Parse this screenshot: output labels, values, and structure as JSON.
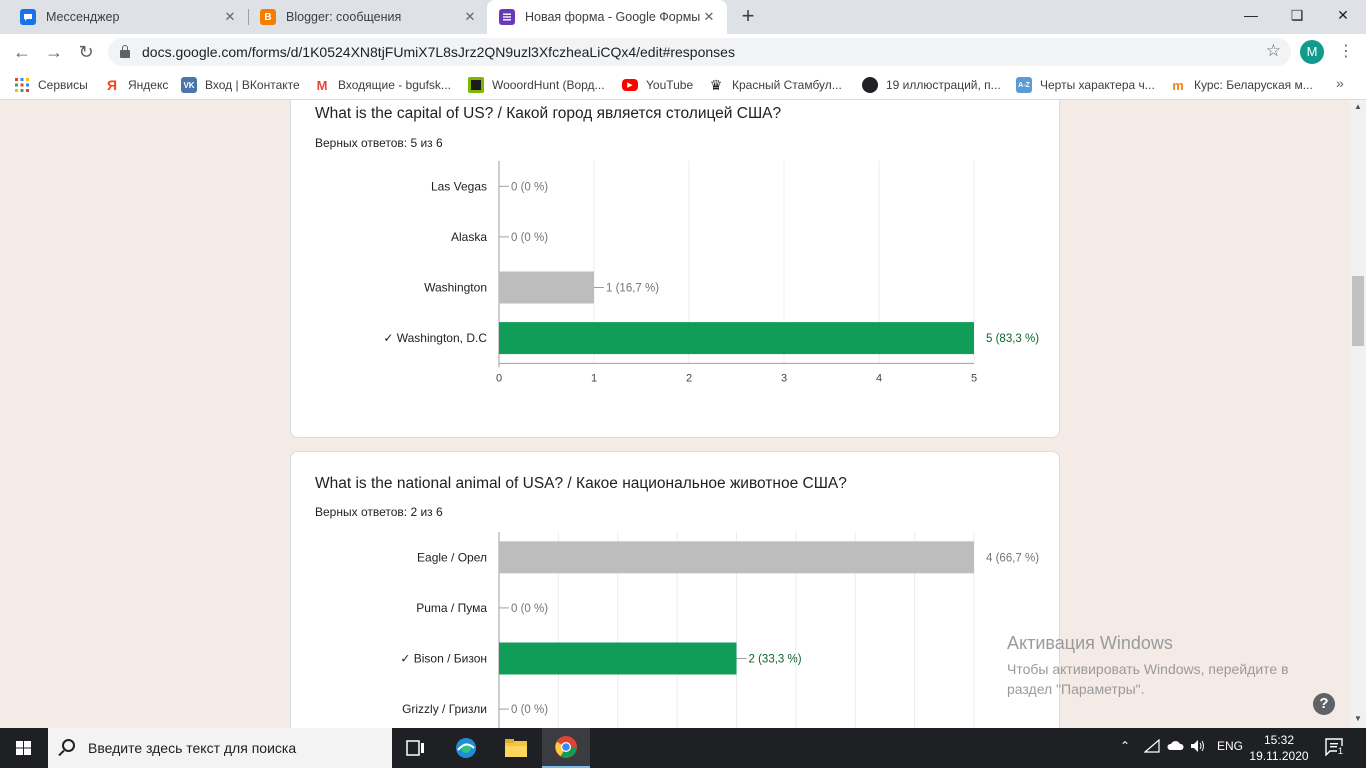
{
  "browser": {
    "tabs": [
      {
        "title": "Мессенджер",
        "icon": "messenger-icon",
        "active": false
      },
      {
        "title": "Blogger: сообщения",
        "icon": "blogger-icon",
        "active": false
      },
      {
        "title": "Новая форма - Google Формы",
        "icon": "google-forms-icon",
        "active": true
      }
    ],
    "new_tab_label": "+",
    "address": "docs.google.com/forms/d/1K0524XN8tjFUmiX7L8sJrz2QN9uzl3XfczheaLiCQx4/edit#responses",
    "profile_initial": "M",
    "bookmarks": [
      {
        "label": "Сервисы",
        "icon": "apps-icon"
      },
      {
        "label": "Яндекс",
        "icon": "yandex-icon"
      },
      {
        "label": "Вход | ВКонтакте",
        "icon": "vk-icon"
      },
      {
        "label": "Входящие - bgufsk...",
        "icon": "gmail-icon"
      },
      {
        "label": "WooordHunt (Ворд...",
        "icon": "wooordhunt-icon"
      },
      {
        "label": "YouTube",
        "icon": "youtube-icon"
      },
      {
        "label": "Красный Стамбул...",
        "icon": "crown-icon"
      },
      {
        "label": "19 иллюстраций, п...",
        "icon": "bookmark-site-icon"
      },
      {
        "label": "Черты характера ч...",
        "icon": "az-icon"
      },
      {
        "label": "Курс: Беларуская м...",
        "icon": "course-icon"
      }
    ]
  },
  "questions": [
    {
      "title": "What is the capital of US? / Какой город является столицей США?",
      "score": "Верных ответов: 5 из 6"
    },
    {
      "title": "What is the national animal of USA? / Какое национальное животное США?",
      "score": "Верных ответов: 2 из 6"
    }
  ],
  "chart_data": [
    {
      "type": "bar",
      "orientation": "horizontal",
      "categories": [
        "Las Vegas",
        "Alaska",
        "Washington",
        "✓ Washington, D.C"
      ],
      "values": [
        0,
        0,
        1,
        5
      ],
      "data_labels": [
        "0 (0 %)",
        "0 (0 %)",
        "1 (16,7 %)",
        "5 (83,3 %)"
      ],
      "correct": [
        false,
        false,
        false,
        true
      ],
      "xlim": [
        0,
        5
      ],
      "xticks": [
        0,
        1,
        2,
        3,
        4,
        5
      ],
      "grid": true,
      "colors": {
        "correct": "#109d58",
        "incorrect": "#bdbdbd"
      }
    },
    {
      "type": "bar",
      "orientation": "horizontal",
      "categories": [
        "Eagle / Орел",
        "Puma / Пума",
        "✓ Bison / Бизон",
        "Grizzly / Гризли"
      ],
      "values": [
        4,
        0,
        2,
        0
      ],
      "data_labels": [
        "4 (66,7 %)",
        "0 (0 %)",
        "2 (33,3 %)",
        "0 (0 %)"
      ],
      "correct": [
        false,
        false,
        true,
        false
      ],
      "xlim": [
        0,
        4
      ],
      "grid": true,
      "colors": {
        "correct": "#109d58",
        "incorrect": "#bdbdbd"
      }
    }
  ],
  "overlay": {
    "activation_title": "Активация Windows",
    "activation_text": "Чтобы активировать Windows, перейдите в раздел \"Параметры\".",
    "help_label": "?"
  },
  "taskbar": {
    "search_placeholder": "Введите здесь текст для поиска",
    "language": "ENG",
    "time": "15:32",
    "date": "19.11.2020",
    "notification_count": "1"
  }
}
